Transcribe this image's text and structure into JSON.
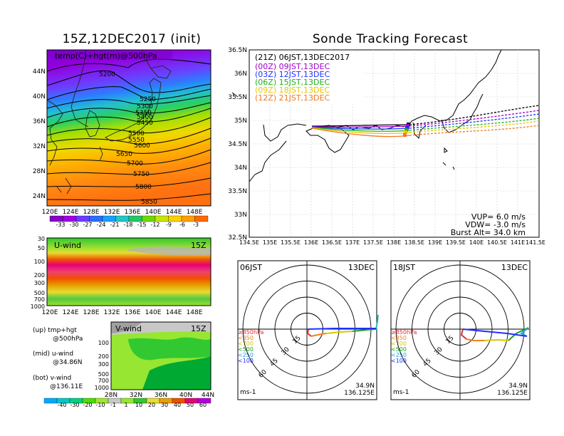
{
  "left_title": "15Z,12DEC2017 (init)",
  "right_title": "Sonde Tracking Forecast",
  "map500": {
    "label": "temp(C)+hgt(m)@500hPa",
    "contour_labels": [
      "5200",
      "5250",
      "5300",
      "5350",
      "5400",
      "5450",
      "5500",
      "5550",
      "5600",
      "5650",
      "5700",
      "5750",
      "5800",
      "5850"
    ],
    "lat_labels": [
      "44N",
      "40N",
      "36N",
      "32N",
      "28N",
      "24N"
    ],
    "lon_labels": [
      "120E",
      "124E",
      "128E",
      "132E",
      "136E",
      "140E",
      "144E",
      "148E"
    ],
    "colorbar_labels": [
      "-33",
      "-30",
      "-27",
      "-24",
      "-21",
      "-18",
      "-15",
      "-12",
      "-9",
      "-6",
      "-3"
    ],
    "colorbar_colors": [
      "#8800c8",
      "#a000e6",
      "#6a3cff",
      "#2a6cff",
      "#1aa0ff",
      "#22c8c8",
      "#22c864",
      "#70d800",
      "#c8e600",
      "#ffd000",
      "#ffa000",
      "#ff6a00"
    ]
  },
  "uwind": {
    "label": "U-wind",
    "time": "15Z",
    "p_labels": [
      "30",
      "50",
      "100",
      "200",
      "300",
      "500",
      "700",
      "1000"
    ],
    "lon_labels": [
      "120E",
      "124E",
      "128E",
      "132E",
      "136E",
      "140E",
      "144E",
      "148E"
    ]
  },
  "vwind": {
    "label": "V-wind",
    "time": "15Z",
    "p_labels": [
      "100",
      "200",
      "300",
      "500",
      "700",
      "1000"
    ],
    "lat_labels": [
      "28N",
      "32N",
      "36N",
      "40N",
      "44N"
    ],
    "colorbar_labels": [
      "-40",
      "-30",
      "-20",
      "-10",
      "-1",
      "1",
      "10",
      "20",
      "30",
      "40",
      "50",
      "60"
    ],
    "colorbar_colors": [
      "#00aaff",
      "#00c8c8",
      "#00d282",
      "#50dc00",
      "#a0e632",
      "#c8c8c8",
      "#96e632",
      "#32c832",
      "#e6dc32",
      "#e6a000",
      "#f05000",
      "#e6007a",
      "#b400dc"
    ]
  },
  "legend_text": {
    "up": "(up) tmp+hgt",
    "up2": "@500hPa",
    "mid": "(mid) u-wind",
    "mid2": "@34.86N",
    "bot": "(bot) v-wind",
    "bot2": "@136.11E"
  },
  "track": {
    "lines": [
      {
        "text": "(21Z) 06JST,13DEC2017",
        "color": "#000000"
      },
      {
        "text": "(00Z) 09JST,13DEC",
        "color": "#a000c8"
      },
      {
        "text": "(03Z) 12JST,13DEC",
        "color": "#2030ff"
      },
      {
        "text": "(06Z) 15JST,13DEC",
        "color": "#20b020"
      },
      {
        "text": "(09Z) 18JST,13DEC",
        "color": "#e6c800"
      },
      {
        "text": "(12Z) 21JST,13DEC",
        "color": "#f07820"
      }
    ],
    "lat_labels": [
      "36.5N",
      "36N",
      "35.5N",
      "35N",
      "34.5N",
      "34N",
      "33.5N",
      "33N",
      "32.5N"
    ],
    "lon_labels": [
      "134.5E",
      "135E",
      "135.5E",
      "136E",
      "136.5E",
      "137E",
      "137.5E",
      "138E",
      "138.5E",
      "139E",
      "139.5E",
      "140E",
      "140.5E",
      "141E",
      "141.5E"
    ],
    "vup": "VUP=  6.0  m/s",
    "vdw": "VDW= -3.0  m/s",
    "burst": "Burst Alt= 34.0  km"
  },
  "hodo_left": {
    "time": "06JST",
    "date": "13DEC",
    "rings": [
      "15",
      "30",
      "45",
      "60"
    ],
    "pressure_legend": [
      "≥850hPa",
      "<850",
      "<700",
      "<500",
      "<250",
      "<100"
    ],
    "legend_colors": [
      "#e03030",
      "#f08020",
      "#d8c800",
      "#20a020",
      "#20a0e0",
      "#2030ff"
    ],
    "lat": "34.9N",
    "lon": "136.125E",
    "unit": "ms-1"
  },
  "hodo_right": {
    "time": "18JST",
    "date": "13DEC",
    "rings": [
      "15",
      "30",
      "45",
      "60"
    ],
    "pressure_legend": [
      "≥850hPa",
      "<850",
      "<700",
      "<500",
      "<250",
      "<100"
    ],
    "legend_colors": [
      "#e03030",
      "#f08020",
      "#d8c800",
      "#20a020",
      "#20a0e0",
      "#2030ff"
    ],
    "lat": "34.9N",
    "lon": "136.125E",
    "unit": "ms-1"
  }
}
